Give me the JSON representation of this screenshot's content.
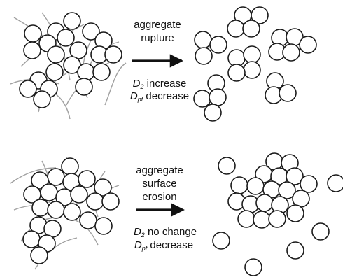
{
  "top": {
    "arrow_label_line1": "aggregate",
    "arrow_label_line2": "rupture",
    "d2_symbol": "D",
    "d2_subscript": "2",
    "d2_text": "increase",
    "dpf_symbol": "D",
    "dpf_subscript": "pf",
    "dpf_text": "decrease"
  },
  "bottom": {
    "arrow_label_line1": "aggregate",
    "arrow_label_line2": "surface",
    "arrow_label_line3": "erosion",
    "d2_symbol": "D",
    "d2_subscript": "2",
    "d2_text": "no change",
    "dpf_symbol": "D",
    "dpf_subscript": "pf",
    "dpf_text": "decrease"
  },
  "colors": {
    "circle_stroke": "#1a1a1a",
    "curve_stroke": "#a0a0a0",
    "arrow": "#111111"
  }
}
